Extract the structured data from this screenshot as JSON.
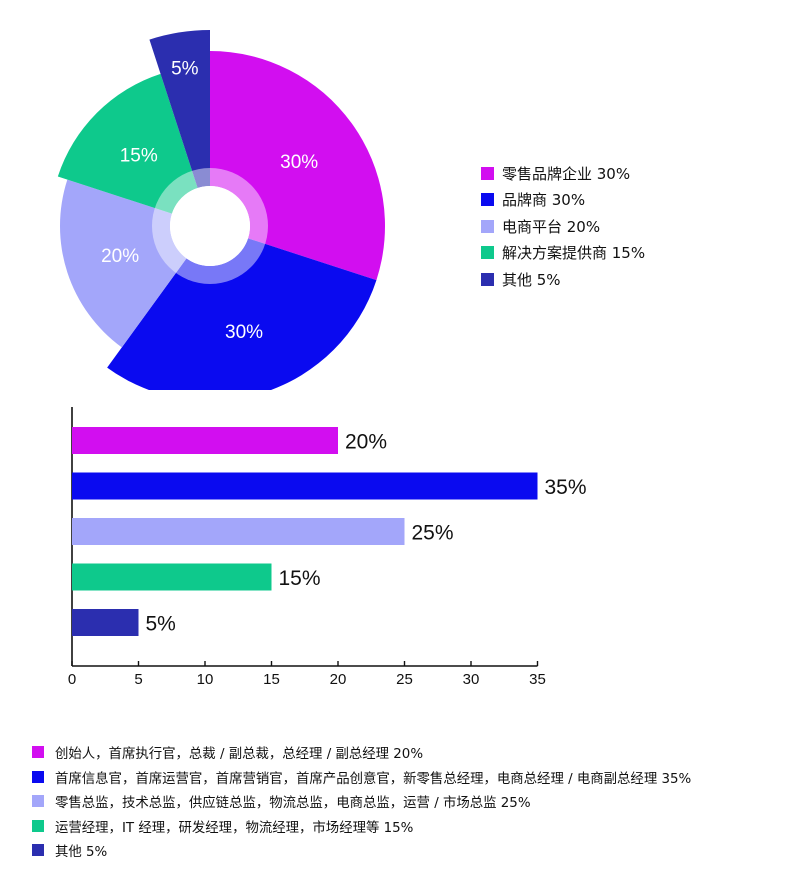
{
  "chart_data": [
    {
      "type": "pie",
      "variant": "rose",
      "title": "",
      "series": [
        {
          "name": "零售品牌企业",
          "value": 30,
          "label": "30%",
          "legend": "零售品牌企业 30%",
          "color": "#d20ef0"
        },
        {
          "name": "品牌商",
          "value": 30,
          "label": "30%",
          "legend": "品牌商 30%",
          "color": "#0a0af0"
        },
        {
          "name": "电商平台",
          "value": 20,
          "label": "20%",
          "legend": "电商平台 20%",
          "color": "#a3a6fa"
        },
        {
          "name": "解决方案提供商",
          "value": 15,
          "label": "15%",
          "legend": "解决方案提供商 15%",
          "color": "#0ec98c"
        },
        {
          "name": "其他",
          "value": 5,
          "label": "5%",
          "legend": "其他 5%",
          "color": "#2b2eaf"
        }
      ],
      "legend_position": "right"
    },
    {
      "type": "bar",
      "orientation": "horizontal",
      "title": "",
      "xlabel": "",
      "ylabel": "",
      "xlim": [
        0,
        35
      ],
      "xticks": [
        0,
        5,
        10,
        15,
        20,
        25,
        30,
        35
      ],
      "grid": false,
      "series": [
        {
          "value": 20,
          "label": "20%",
          "legend": "创始人，首席执行官，总裁 / 副总裁，总经理 / 副总经理 20%",
          "color": "#d20ef0"
        },
        {
          "value": 35,
          "label": "35%",
          "legend": "首席信息官，首席运营官，首席营销官，首席产品创意官，新零售总经理，电商总经理 / 电商副总经理 35%",
          "color": "#0a0af0"
        },
        {
          "value": 25,
          "label": "25%",
          "legend": "零售总监，技术总监，供应链总监，物流总监，电商总监，运营 / 市场总监 25%",
          "color": "#a3a6fa"
        },
        {
          "value": 15,
          "label": "15%",
          "legend": "运营经理，IT 经理，研发经理，物流经理，市场经理等 15%",
          "color": "#0ec98c"
        },
        {
          "value": 5,
          "label": "5%",
          "legend": "其他 5%",
          "color": "#2b2eaf"
        }
      ],
      "legend_position": "bottom"
    }
  ]
}
